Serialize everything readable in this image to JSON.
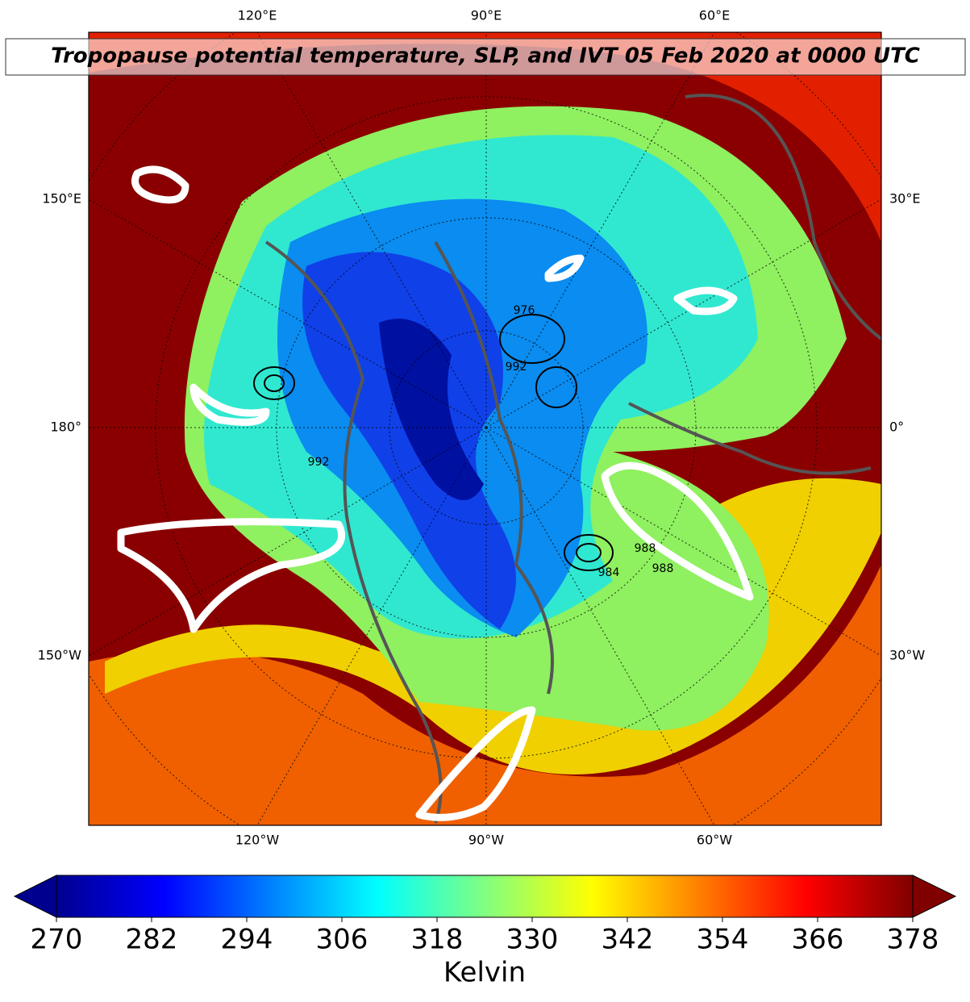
{
  "title": "Tropopause potential temperature, SLP, and IVT 05 Feb 2020 at 0000 UTC",
  "map": {
    "top_labels": [
      "120°E",
      "90°E",
      "60°E"
    ],
    "bottom_labels": [
      "120°W",
      "90°W",
      "60°W"
    ],
    "left_labels": [
      "150°E",
      "180°",
      "150°W"
    ],
    "right_labels": [
      "30°E",
      "0°",
      "30°W"
    ],
    "contour_labels": [
      "976",
      "992",
      "992",
      "988",
      "984",
      "988"
    ]
  },
  "colorbar": {
    "lim": [
      270,
      378
    ],
    "ticks": [
      270,
      282,
      294,
      306,
      318,
      330,
      342,
      354,
      366,
      378
    ],
    "label": "Kelvin",
    "colors": [
      "#00008f",
      "#0000ff",
      "#0080ff",
      "#00ffff",
      "#80ff80",
      "#ffff00",
      "#ff8000",
      "#ff0000",
      "#800000"
    ]
  }
}
